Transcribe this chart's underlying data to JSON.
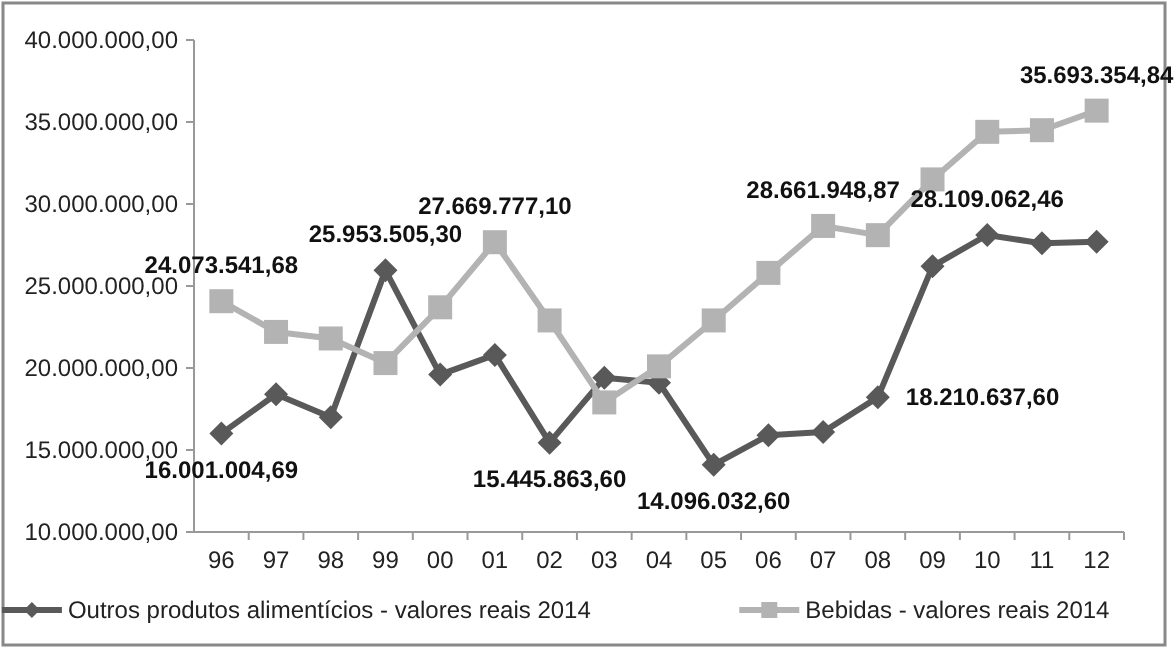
{
  "chart_data": {
    "type": "line",
    "categories": [
      "96",
      "97",
      "98",
      "99",
      "00",
      "01",
      "02",
      "03",
      "04",
      "05",
      "06",
      "07",
      "08",
      "09",
      "10",
      "11",
      "12"
    ],
    "series": [
      {
        "name": "Outros produtos alimentícios - valores reais 2014",
        "color": "#595959",
        "marker": "diamond",
        "values": [
          16001004.69,
          18400000,
          17000000,
          25953505.3,
          19600000,
          20800000,
          15445863.6,
          19400000,
          19100000,
          14096032.6,
          15900000,
          16100000,
          18210637.6,
          26200000,
          28109062.46,
          27600000,
          27700000
        ],
        "value_labels": [
          "16.001.004,69",
          null,
          null,
          "25.953.505,30",
          null,
          null,
          "15.445.863,60",
          null,
          null,
          "14.096.032,60",
          null,
          null,
          "18.210.637,60",
          null,
          "28.109.062,46",
          null,
          null
        ]
      },
      {
        "name": "Bebidas - valores reais 2014",
        "color": "#b3b3b3",
        "marker": "square",
        "values": [
          24073541.68,
          22200000,
          21800000,
          20300000,
          23700000,
          27669777.1,
          22900000,
          17900000,
          20100000,
          22900000,
          25800000,
          28661948.87,
          28100000,
          31500000,
          34400000,
          34500000,
          35693354.84
        ],
        "value_labels": [
          "24.073.541,68",
          null,
          null,
          null,
          null,
          "27.669.777,10",
          null,
          null,
          null,
          null,
          null,
          "28.661.948,87",
          null,
          null,
          null,
          null,
          "35.693.354,84"
        ]
      }
    ],
    "ylim": [
      10000000,
      40000000
    ],
    "yticks": [
      {
        "value": 10000000,
        "label": "10.000.000,00"
      },
      {
        "value": 15000000,
        "label": "15.000.000,00"
      },
      {
        "value": 20000000,
        "label": "20.000.000,00"
      },
      {
        "value": 25000000,
        "label": "25.000.000,00"
      },
      {
        "value": 30000000,
        "label": "30.000.000,00"
      },
      {
        "value": 35000000,
        "label": "35.000.000,00"
      },
      {
        "value": 40000000,
        "label": "40.000.000,00"
      }
    ],
    "grid": false,
    "legend": "bottom",
    "line_style": "solid"
  }
}
